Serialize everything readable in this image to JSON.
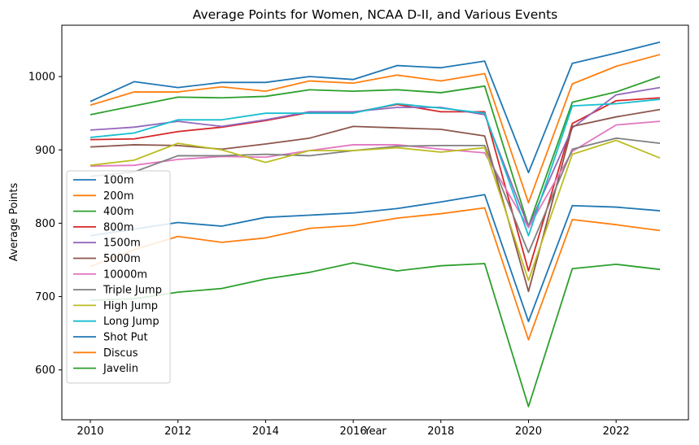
{
  "chart_data": {
    "type": "line",
    "title": "Average Points for Women, NCAA D-II, and Various Events",
    "xlabel": "Year",
    "ylabel": "Average Points",
    "xlim": [
      2009.35,
      2023.65
    ],
    "ylim": [
      532,
      1070
    ],
    "xticks": [
      2010,
      2012,
      2014,
      2016,
      2018,
      2020,
      2022
    ],
    "yticks": [
      600,
      700,
      800,
      900,
      1000
    ],
    "grid": false,
    "legend_position": "center-left",
    "x": [
      2010,
      2011,
      2012,
      2013,
      2014,
      2015,
      2016,
      2017,
      2018,
      2019,
      2020,
      2021,
      2022,
      2023
    ],
    "series": [
      {
        "name": "100m",
        "color": "#1f77b4",
        "values": [
          966,
          993,
          985,
          992,
          992,
          1000,
          996,
          1015,
          1012,
          1021,
          869,
          1018,
          1032,
          1047
        ]
      },
      {
        "name": "200m",
        "color": "#ff7f0e",
        "values": [
          961,
          979,
          979,
          986,
          980,
          994,
          991,
          1002,
          994,
          1004,
          828,
          990,
          1014,
          1030
        ]
      },
      {
        "name": "400m",
        "color": "#2ca02c",
        "values": [
          948,
          960,
          972,
          971,
          973,
          982,
          980,
          982,
          978,
          987,
          796,
          965,
          979,
          1000
        ]
      },
      {
        "name": "800m",
        "color": "#d62728",
        "values": [
          914,
          915,
          925,
          931,
          940,
          951,
          951,
          962,
          952,
          952,
          735,
          936,
          967,
          971
        ]
      },
      {
        "name": "1500m",
        "color": "#9467bd",
        "values": [
          927,
          931,
          939,
          932,
          941,
          952,
          952,
          958,
          958,
          948,
          795,
          930,
          975,
          985
        ]
      },
      {
        "name": "5000m",
        "color": "#8c564b",
        "values": [
          904,
          907,
          906,
          901,
          908,
          916,
          932,
          930,
          928,
          919,
          707,
          932,
          945,
          955
        ]
      },
      {
        "name": "10000m",
        "color": "#e377c2",
        "values": [
          878,
          879,
          887,
          891,
          890,
          899,
          907,
          907,
          901,
          896,
          794,
          898,
          934,
          939
        ]
      },
      {
        "name": "Triple Jump",
        "color": "#7f7f7f",
        "values": [
          864,
          870,
          892,
          892,
          894,
          892,
          899,
          905,
          906,
          906,
          760,
          901,
          916,
          909
        ]
      },
      {
        "name": "High Jump",
        "color": "#bcbd22",
        "values": [
          879,
          886,
          909,
          900,
          883,
          899,
          899,
          903,
          897,
          903,
          722,
          894,
          913,
          889
        ]
      },
      {
        "name": "Long Jump",
        "color": "#17becf",
        "values": [
          917,
          923,
          941,
          941,
          950,
          950,
          950,
          963,
          957,
          950,
          783,
          960,
          963,
          969
        ]
      },
      {
        "name": "Shot Put",
        "color": "#1f77b4",
        "values": [
          783,
          792,
          801,
          796,
          808,
          811,
          814,
          820,
          829,
          839,
          666,
          824,
          822,
          817
        ]
      },
      {
        "name": "Discus",
        "color": "#ff7f0e",
        "values": [
          741,
          764,
          782,
          774,
          780,
          793,
          797,
          807,
          813,
          821,
          641,
          805,
          798,
          790
        ]
      },
      {
        "name": "Javelin",
        "color": "#2ca02c",
        "values": [
          695,
          697,
          706,
          711,
          724,
          733,
          746,
          735,
          742,
          745,
          550,
          738,
          744,
          737
        ]
      }
    ]
  }
}
